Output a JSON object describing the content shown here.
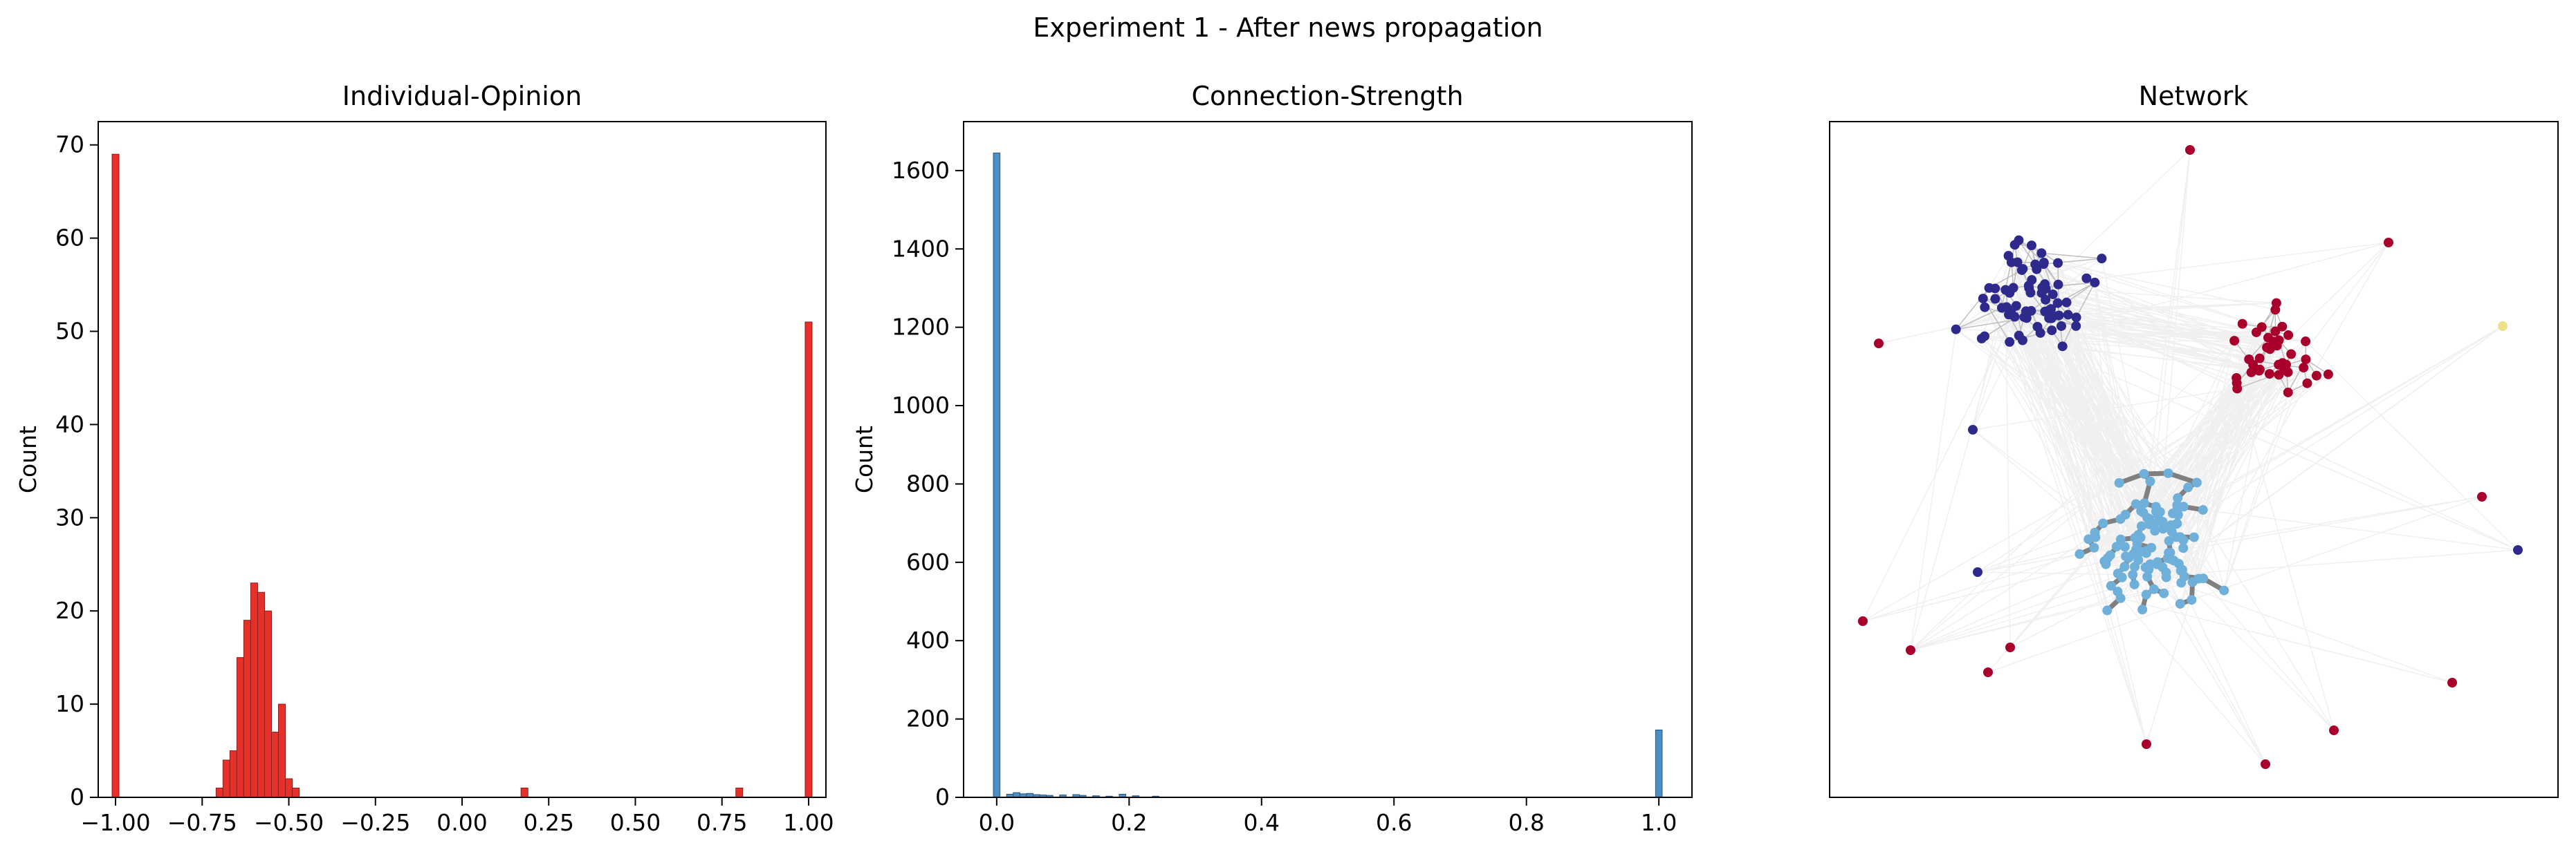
{
  "figure": {
    "suptitle": "Experiment 1 - After news propagation"
  },
  "chart_data": [
    {
      "type": "bar",
      "title": "Individual-Opinion",
      "xlabel": "",
      "ylabel": "Count",
      "xlim": [
        -1.05,
        1.05
      ],
      "ylim": [
        0,
        72.5
      ],
      "xticks": [
        -1.0,
        -0.75,
        -0.5,
        -0.25,
        0.0,
        0.25,
        0.5,
        0.75,
        1.0
      ],
      "xtick_labels": [
        "−1.00",
        "−0.75",
        "−0.50",
        "−0.25",
        "0.00",
        "0.25",
        "0.50",
        "0.75",
        "1.00"
      ],
      "yticks": [
        0,
        10,
        20,
        30,
        40,
        50,
        60,
        70
      ],
      "ytick_labels": [
        "0",
        "10",
        "20",
        "30",
        "40",
        "50",
        "60",
        "70"
      ],
      "bin_width": 0.02,
      "bars": [
        {
          "x": -1.0,
          "count": 69
        },
        {
          "x": -0.7,
          "count": 1
        },
        {
          "x": -0.68,
          "count": 4
        },
        {
          "x": -0.66,
          "count": 5
        },
        {
          "x": -0.64,
          "count": 15
        },
        {
          "x": -0.62,
          "count": 19
        },
        {
          "x": -0.6,
          "count": 23
        },
        {
          "x": -0.58,
          "count": 22
        },
        {
          "x": -0.56,
          "count": 20
        },
        {
          "x": -0.54,
          "count": 7
        },
        {
          "x": -0.52,
          "count": 10
        },
        {
          "x": -0.5,
          "count": 2
        },
        {
          "x": -0.48,
          "count": 1
        },
        {
          "x": 0.18,
          "count": 1
        },
        {
          "x": 0.8,
          "count": 1
        },
        {
          "x": 1.0,
          "count": 51
        }
      ],
      "color": "#e8302a",
      "edge_color": "#8a1f1a",
      "grid": false
    },
    {
      "type": "bar",
      "title": "Connection-Strength",
      "xlabel": "",
      "ylabel": "Count",
      "xlim": [
        -0.05,
        1.05
      ],
      "ylim": [
        0,
        1725
      ],
      "xticks": [
        0.0,
        0.2,
        0.4,
        0.6,
        0.8,
        1.0
      ],
      "xtick_labels": [
        "0.0",
        "0.2",
        "0.4",
        "0.6",
        "0.8",
        "1.0"
      ],
      "yticks": [
        0,
        200,
        400,
        600,
        800,
        1000,
        1200,
        1400,
        1600
      ],
      "ytick_labels": [
        "0",
        "200",
        "400",
        "600",
        "800",
        "1000",
        "1200",
        "1400",
        "1600"
      ],
      "bin_width": 0.01,
      "bars": [
        {
          "x": 0.0,
          "count": 1645
        },
        {
          "x": 0.02,
          "count": 8
        },
        {
          "x": 0.03,
          "count": 12
        },
        {
          "x": 0.04,
          "count": 9
        },
        {
          "x": 0.05,
          "count": 10
        },
        {
          "x": 0.06,
          "count": 7
        },
        {
          "x": 0.07,
          "count": 6
        },
        {
          "x": 0.08,
          "count": 5
        },
        {
          "x": 0.1,
          "count": 6
        },
        {
          "x": 0.12,
          "count": 7
        },
        {
          "x": 0.13,
          "count": 5
        },
        {
          "x": 0.15,
          "count": 4
        },
        {
          "x": 0.17,
          "count": 3
        },
        {
          "x": 0.19,
          "count": 8
        },
        {
          "x": 0.21,
          "count": 4
        },
        {
          "x": 0.24,
          "count": 3
        },
        {
          "x": 1.0,
          "count": 172
        }
      ],
      "color": "#4c8fc4",
      "edge_color": "#2b5577",
      "grid": false
    },
    {
      "type": "network",
      "title": "Network",
      "xlabel": "",
      "ylabel": "",
      "ticks": false,
      "groups": [
        {
          "color": "#2e2a8c",
          "role": "opinion -1 cluster"
        },
        {
          "color": "#a8002a",
          "role": "opinion +1 cluster"
        },
        {
          "color": "#6fb0db",
          "role": "moderate cluster"
        },
        {
          "color": "#f0e08a",
          "role": "isolated node"
        }
      ],
      "strong_edge_color": "#808080",
      "weak_edge_color": "#bfbfbf",
      "faint_edge_color": "#f0f0f0"
    }
  ]
}
